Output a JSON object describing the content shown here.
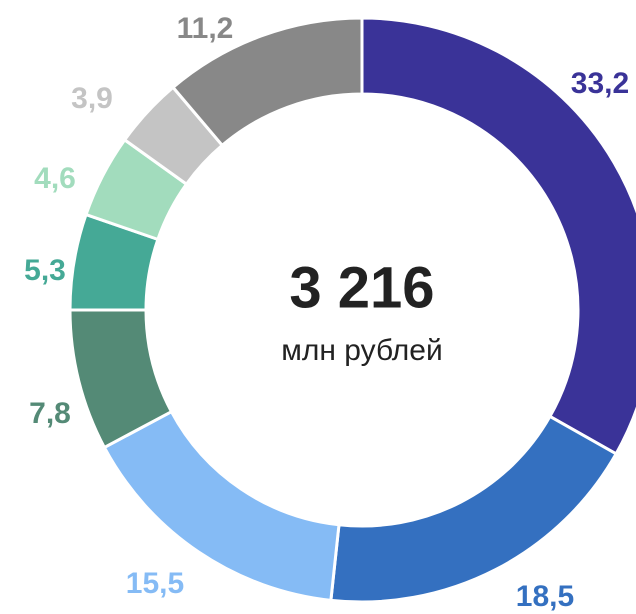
{
  "chart_data": {
    "type": "donut",
    "center_value": "3 216",
    "center_label": "млн рублей",
    "values": [
      33.2,
      18.5,
      15.5,
      7.8,
      5.3,
      4.6,
      3.9,
      11.2
    ],
    "value_labels": [
      "33,2",
      "18,5",
      "15,5",
      "7,8",
      "5,3",
      "4,6",
      "3,9",
      "11,2"
    ],
    "colors": [
      "#3a3398",
      "#3470c0",
      "#85bbf5",
      "#548a76",
      "#45a996",
      "#a2dcbd",
      "#c4c4c4",
      "#888888"
    ]
  }
}
